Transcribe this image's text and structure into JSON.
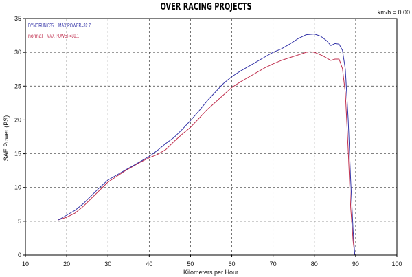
{
  "chart_data": {
    "type": "line",
    "title": "OVER RACING PROJECTS",
    "annotation": "km/h = 0.00",
    "xlabel": "Kilometers per Hour",
    "ylabel": "SAE Power (PS)",
    "xlim": [
      10,
      100
    ],
    "ylim": [
      0,
      35
    ],
    "x_ticks": [
      10,
      20,
      30,
      40,
      50,
      60,
      70,
      80,
      90,
      100
    ],
    "y_ticks": [
      0,
      5,
      10,
      15,
      20,
      25,
      30,
      35
    ],
    "grid": true,
    "legend_position": "top-left",
    "series": [
      {
        "name": "DYNORUN 035",
        "legend_label": "MAX POWER=32.7",
        "color": "#3434a8",
        "x": [
          18,
          20,
          22,
          24,
          26,
          28,
          30,
          32,
          34,
          36,
          38,
          40,
          42,
          44,
          46,
          48,
          50,
          52,
          54,
          56,
          58,
          60,
          62,
          64,
          66,
          68,
          70,
          72,
          74,
          76,
          78,
          80,
          81.5,
          83,
          84,
          85,
          86,
          86.8,
          87.5,
          88.2,
          88.8,
          89.4,
          89.8
        ],
        "y": [
          5.2,
          5.9,
          6.6,
          7.6,
          8.8,
          10.0,
          11.1,
          11.8,
          12.5,
          13.2,
          13.9,
          14.6,
          15.5,
          16.5,
          17.4,
          18.6,
          19.9,
          21.3,
          22.8,
          24.1,
          25.4,
          26.4,
          27.2,
          27.9,
          28.6,
          29.3,
          30.0,
          30.5,
          31.2,
          32.0,
          32.6,
          32.7,
          32.4,
          31.7,
          31.0,
          31.3,
          31.2,
          30.3,
          27.5,
          20.0,
          11.0,
          3.5,
          0
        ]
      },
      {
        "name": "normal",
        "legend_label": "MAX POWER=30.1",
        "color": "#c0304f",
        "x": [
          18,
          20,
          22,
          24,
          26,
          28,
          30,
          32,
          34,
          36,
          38,
          40,
          42,
          44,
          46,
          48,
          50,
          52,
          54,
          56,
          58,
          60,
          62,
          64,
          66,
          68,
          70,
          72,
          74,
          76,
          78,
          79,
          80,
          82,
          84,
          85,
          86,
          86.8,
          87.5,
          88.2,
          88.8,
          89.4,
          89.8
        ],
        "y": [
          5.2,
          5.6,
          6.2,
          7.2,
          8.4,
          9.6,
          10.8,
          11.6,
          12.4,
          13.1,
          13.8,
          14.4,
          14.9,
          15.6,
          16.8,
          17.9,
          18.9,
          20.2,
          21.5,
          22.6,
          23.7,
          24.8,
          25.6,
          26.3,
          27.0,
          27.7,
          28.3,
          28.8,
          29.2,
          29.6,
          30.0,
          30.1,
          30.0,
          29.5,
          28.8,
          29.0,
          29.0,
          27.6,
          24.0,
          15.5,
          7.0,
          2.0,
          0
        ]
      }
    ]
  }
}
